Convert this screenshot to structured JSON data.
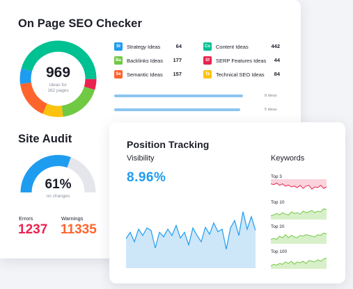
{
  "seo_checker": {
    "title": "On Page SEO Checker",
    "total": "969",
    "total_sub_line1": "ideas for",
    "total_sub_line2": "162 pages",
    "segments": [
      {
        "name": "Strategy Ideas",
        "value": 64,
        "color": "#1e9cf0"
      },
      {
        "name": "Backlinks Ideas",
        "value": 177,
        "color": "#70c943"
      },
      {
        "name": "Semantic Ideas",
        "value": 157,
        "color": "#ff642d"
      },
      {
        "name": "Content Ideas",
        "value": 442,
        "color": "#00c192"
      },
      {
        "name": "SERP Features Ideas",
        "value": 44,
        "color": "#e9224f"
      },
      {
        "name": "Technical SEO Ideas",
        "value": 84,
        "color": "#fbc30f"
      }
    ],
    "legend": [
      {
        "badge": "St",
        "label": "Strategy Ideas",
        "value": "64",
        "color": "#1e9cf0"
      },
      {
        "badge": "Ba",
        "label": "Backlinks Ideas",
        "value": "177",
        "color": "#70c943"
      },
      {
        "badge": "Se",
        "label": "Semantic Ideas",
        "value": "157",
        "color": "#ff642d"
      },
      {
        "badge": "Co",
        "label": "Content Ideas",
        "value": "442",
        "color": "#00c192"
      },
      {
        "badge": "Sf",
        "label": "SERP Features Ideas",
        "value": "44",
        "color": "#e9224f"
      },
      {
        "badge": "Te",
        "label": "Technical SEO Ideas",
        "value": "84",
        "color": "#fbc30f"
      }
    ],
    "bars": [
      {
        "label": "8 ideas",
        "fill": 1.0
      },
      {
        "label": "5 ideas",
        "fill": 0.98
      }
    ]
  },
  "site_audit": {
    "title": "Site Audit",
    "percent": "61%",
    "percent_value": 61,
    "sub": "no changes",
    "errors_label": "Errors",
    "errors_value": "1237",
    "warnings_label": "Warnings",
    "warnings_value": "11335",
    "colors": {
      "gauge": "#1e9cf0",
      "track": "#e4e6eb",
      "errors": "#e9224f",
      "warnings": "#ff642d"
    }
  },
  "position_tracking": {
    "title": "Position Tracking",
    "visibility_label": "Visibility",
    "visibility_value": "8.96%",
    "keywords_label": "Keywords",
    "visibility_series": [
      0.45,
      0.55,
      0.4,
      0.6,
      0.5,
      0.62,
      0.58,
      0.3,
      0.55,
      0.48,
      0.6,
      0.5,
      0.66,
      0.46,
      0.55,
      0.35,
      0.62,
      0.5,
      0.4,
      0.63,
      0.52,
      0.7,
      0.56,
      0.6,
      0.28,
      0.62,
      0.74,
      0.5,
      0.88,
      0.6,
      0.8,
      0.58
    ],
    "keywords": [
      {
        "label": "Top 3",
        "tone": "red",
        "series": [
          0.7,
          0.65,
          0.75,
          0.6,
          0.7,
          0.55,
          0.62,
          0.5,
          0.55,
          0.45,
          0.6,
          0.4,
          0.55,
          0.6,
          0.35,
          0.5,
          0.45,
          0.6,
          0.4,
          0.5
        ]
      },
      {
        "label": "Top 10",
        "tone": "green",
        "series": [
          0.25,
          0.3,
          0.4,
          0.3,
          0.45,
          0.35,
          0.3,
          0.5,
          0.4,
          0.45,
          0.35,
          0.55,
          0.45,
          0.5,
          0.6,
          0.45,
          0.55,
          0.5,
          0.7,
          0.65
        ]
      },
      {
        "label": "Top 20",
        "tone": "green",
        "series": [
          0.3,
          0.35,
          0.3,
          0.5,
          0.4,
          0.6,
          0.4,
          0.55,
          0.45,
          0.4,
          0.55,
          0.5,
          0.6,
          0.55,
          0.5,
          0.45,
          0.6,
          0.55,
          0.7,
          0.65
        ]
      },
      {
        "label": "Top 100",
        "tone": "green",
        "series": [
          0.2,
          0.3,
          0.25,
          0.35,
          0.3,
          0.45,
          0.35,
          0.5,
          0.3,
          0.45,
          0.4,
          0.5,
          0.35,
          0.55,
          0.5,
          0.45,
          0.6,
          0.5,
          0.65,
          0.7
        ]
      }
    ],
    "colors": {
      "line": "#1e9cf0",
      "fill": "#cde7f8",
      "red_line": "#e9224f",
      "red_fill": "#fbd3dc",
      "green_line": "#70c943",
      "green_fill": "#d8f0c9"
    }
  }
}
